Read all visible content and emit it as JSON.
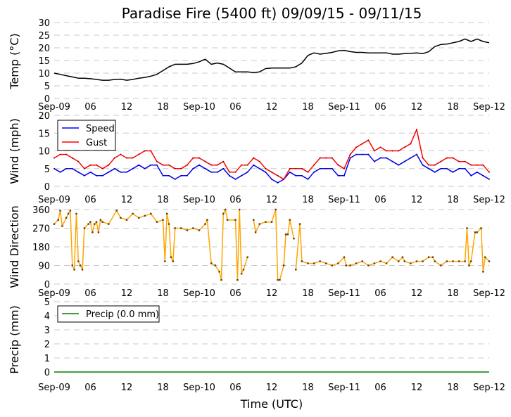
{
  "chart_data": [
    {
      "type": "line",
      "title": "Paradise Fire (5400 ft) 09/09/15 - 09/11/15",
      "ylabel": "Temp (°C)",
      "ylim": [
        0,
        30
      ],
      "yticks": [
        0,
        5,
        10,
        15,
        20,
        25,
        30
      ],
      "grid": true,
      "series": [
        {
          "color": "#000000",
          "values": [
            10,
            9.5,
            9,
            8.5,
            8,
            8,
            7.8,
            7.5,
            7.2,
            7.2,
            7.5,
            7.6,
            7.2,
            7.5,
            8,
            8.3,
            8.8,
            9.5,
            11,
            12.5,
            13.5,
            13.5,
            13.5,
            13.8,
            14.5,
            15.5,
            13.5,
            14,
            13.5,
            12,
            10.5,
            10.5,
            10.5,
            10.2,
            10.5,
            11.8,
            12,
            12,
            12,
            12,
            12.5,
            14,
            17,
            18,
            17.5,
            17.8,
            18.2,
            18.8,
            19,
            18.5,
            18.2,
            18.2,
            18,
            18,
            18,
            18,
            17.5,
            17.5,
            17.7,
            17.8,
            18,
            17.7,
            18.5,
            20.5,
            21.3,
            21.5,
            22,
            22.5,
            23.5,
            22.5,
            23.5,
            22.5,
            22
          ]
        }
      ]
    },
    {
      "type": "line",
      "ylabel": "Wind (mph)",
      "ylim": [
        0,
        20
      ],
      "yticks": [
        0,
        5,
        10,
        15,
        20
      ],
      "grid": true,
      "legend": "top-left",
      "series": [
        {
          "name": "Speed",
          "color": "#0000ff",
          "values": [
            5,
            4,
            5,
            5,
            4,
            3,
            4,
            3,
            3,
            4,
            5,
            4,
            4,
            5,
            6,
            5,
            6,
            6,
            3,
            3,
            2,
            3,
            3,
            5,
            6,
            5,
            4,
            4,
            5,
            3,
            2,
            3,
            4,
            6,
            5,
            4,
            2,
            1,
            2,
            4,
            3,
            3,
            2,
            4,
            5,
            5,
            5,
            3,
            3,
            8,
            9,
            9,
            9,
            7,
            8,
            8,
            7,
            6,
            7,
            8,
            9,
            6,
            5,
            4,
            5,
            5,
            4,
            5,
            5,
            3,
            4,
            3,
            2
          ]
        },
        {
          "name": "Gust",
          "color": "#ff0000",
          "values": [
            8,
            9,
            9,
            8,
            7,
            5,
            6,
            6,
            5,
            6,
            8,
            9,
            8,
            8,
            9,
            10,
            10,
            7,
            6,
            6,
            5,
            5,
            6,
            8,
            8,
            7,
            6,
            6,
            7,
            4,
            4,
            6,
            6,
            8,
            7,
            5,
            4,
            3,
            2,
            5,
            5,
            5,
            4,
            6,
            8,
            8,
            8,
            6,
            5,
            9,
            11,
            12,
            13,
            10,
            11,
            10,
            10,
            10,
            11,
            12,
            16,
            8,
            6,
            6,
            7,
            8,
            8,
            7,
            7,
            6,
            6,
            6,
            4
          ]
        }
      ]
    },
    {
      "type": "line",
      "ylabel": "Wind Direction",
      "ylim": [
        0,
        360
      ],
      "yticks": [
        0,
        90,
        180,
        270,
        360
      ],
      "grid": true,
      "series": [
        {
          "color": "#ffa500",
          "marker_color": "#5a3c0a",
          "points": [
            [
              "2015-09-09 00:00",
              290
            ],
            [
              "2015-09-09 00:40",
              310
            ],
            [
              "2015-09-09 01:00",
              355
            ],
            [
              "2015-09-09 01:20",
              280
            ],
            [
              "2015-09-09 02:00",
              320
            ],
            [
              "2015-09-09 02:20",
              340
            ],
            [
              "2015-09-09 02:40",
              355
            ],
            [
              "2015-09-09 03:00",
              90
            ],
            [
              "2015-09-09 03:20",
              70
            ],
            [
              "2015-09-09 03:40",
              340
            ],
            [
              "2015-09-09 04:00",
              110
            ],
            [
              "2015-09-09 04:20",
              90
            ],
            [
              "2015-09-09 04:40",
              70
            ],
            [
              "2015-09-09 05:00",
              270
            ],
            [
              "2015-09-09 05:40",
              290
            ],
            [
              "2015-09-09 06:00",
              300
            ],
            [
              "2015-09-09 06:20",
              250
            ],
            [
              "2015-09-09 06:40",
              290
            ],
            [
              "2015-09-09 07:00",
              300
            ],
            [
              "2015-09-09 07:20",
              250
            ],
            [
              "2015-09-09 07:40",
              310
            ],
            [
              "2015-09-09 08:00",
              300
            ],
            [
              "2015-09-09 09:00",
              290
            ],
            [
              "2015-09-09 10:20",
              355
            ],
            [
              "2015-09-09 11:00",
              320
            ],
            [
              "2015-09-09 12:00",
              310
            ],
            [
              "2015-09-09 13:00",
              340
            ],
            [
              "2015-09-09 14:00",
              320
            ],
            [
              "2015-09-09 15:00",
              330
            ],
            [
              "2015-09-09 16:00",
              340
            ],
            [
              "2015-09-09 17:00",
              300
            ],
            [
              "2015-09-09 18:00",
              310
            ],
            [
              "2015-09-09 18:20",
              110
            ],
            [
              "2015-09-09 18:40",
              340
            ],
            [
              "2015-09-09 19:00",
              290
            ],
            [
              "2015-09-09 19:20",
              130
            ],
            [
              "2015-09-09 19:40",
              110
            ],
            [
              "2015-09-09 20:00",
              270
            ],
            [
              "2015-09-09 21:00",
              270
            ],
            [
              "2015-09-09 22:00",
              260
            ],
            [
              "2015-09-09 23:00",
              270
            ],
            [
              "2015-09-10 00:00",
              260
            ],
            [
              "2015-09-10 01:00",
              290
            ],
            [
              "2015-09-10 01:20",
              310
            ],
            [
              "2015-09-10 02:00",
              100
            ],
            [
              "2015-09-10 02:40",
              90
            ],
            [
              "2015-09-10 03:20",
              60
            ],
            [
              "2015-09-10 03:40",
              20
            ],
            [
              "2015-09-10 04:00",
              340
            ],
            [
              "2015-09-10 04:20",
              360
            ],
            [
              "2015-09-10 04:40",
              310
            ],
            [
              "2015-09-10 06:00",
              310
            ],
            [
              "2015-09-10 06:20",
              20
            ],
            [
              "2015-09-10 06:40",
              360
            ],
            [
              "2015-09-10 07:00",
              50
            ],
            [
              "2015-09-10 07:20",
              70
            ],
            [
              "2015-09-10 08:00",
              130
            ],
            null,
            [
              "2015-09-10 09:00",
              310
            ],
            [
              "2015-09-10 09:20",
              250
            ],
            [
              "2015-09-10 10:00",
              290
            ],
            [
              "2015-09-10 11:00",
              300
            ],
            [
              "2015-09-10 12:00",
              300
            ],
            [
              "2015-09-10 12:40",
              360
            ],
            [
              "2015-09-10 13:00",
              20
            ],
            [
              "2015-09-10 13:20",
              20
            ],
            [
              "2015-09-10 14:00",
              90
            ],
            [
              "2015-09-10 14:20",
              240
            ],
            [
              "2015-09-10 14:40",
              240
            ],
            [
              "2015-09-10 15:00",
              310
            ],
            [
              "2015-09-10 15:40",
              220
            ],
            null,
            [
              "2015-09-10 16:00",
              70
            ],
            [
              "2015-09-10 16:40",
              290
            ],
            [
              "2015-09-10 17:00",
              110
            ],
            [
              "2015-09-10 18:00",
              100
            ],
            [
              "2015-09-10 19:00",
              100
            ],
            [
              "2015-09-10 20:00",
              110
            ],
            [
              "2015-09-10 21:00",
              100
            ],
            [
              "2015-09-10 22:00",
              90
            ],
            [
              "2015-09-10 23:00",
              100
            ],
            [
              "2015-09-11 00:00",
              130
            ],
            [
              "2015-09-11 00:20",
              90
            ],
            [
              "2015-09-11 01:00",
              90
            ],
            [
              "2015-09-11 02:00",
              100
            ],
            [
              "2015-09-11 03:00",
              110
            ],
            [
              "2015-09-11 04:00",
              90
            ],
            [
              "2015-09-11 05:00",
              100
            ],
            [
              "2015-09-11 06:00",
              110
            ],
            [
              "2015-09-11 07:00",
              100
            ],
            [
              "2015-09-11 08:00",
              130
            ],
            [
              "2015-09-11 09:00",
              110
            ],
            [
              "2015-09-11 09:40",
              130
            ],
            [
              "2015-09-11 10:00",
              110
            ],
            [
              "2015-09-11 11:00",
              100
            ],
            [
              "2015-09-11 12:00",
              110
            ],
            [
              "2015-09-11 13:00",
              110
            ],
            [
              "2015-09-11 14:00",
              130
            ],
            [
              "2015-09-11 14:40",
              130
            ],
            [
              "2015-09-11 15:00",
              110
            ],
            [
              "2015-09-11 16:00",
              90
            ],
            [
              "2015-09-11 17:00",
              110
            ],
            [
              "2015-09-11 18:00",
              110
            ],
            [
              "2015-09-11 19:00",
              110
            ],
            [
              "2015-09-11 20:00",
              110
            ],
            [
              "2015-09-11 20:20",
              270
            ],
            [
              "2015-09-11 20:40",
              90
            ],
            [
              "2015-09-11 21:00",
              110
            ],
            [
              "2015-09-11 21:40",
              250
            ],
            [
              "2015-09-11 22:00",
              250
            ],
            [
              "2015-09-11 22:40",
              270
            ],
            [
              "2015-09-11 23:00",
              60
            ],
            [
              "2015-09-11 23:20",
              130
            ],
            [
              "2015-09-12 00:00",
              110
            ]
          ]
        }
      ]
    },
    {
      "type": "line",
      "ylabel": "Precip (mm)",
      "xlabel": "Time (UTC)",
      "ylim": [
        0,
        5
      ],
      "yticks": [
        0,
        1,
        2,
        3,
        4,
        5
      ],
      "grid": true,
      "legend": "top-left",
      "series": [
        {
          "name": "Precip (0.0 mm)",
          "color": "#008000",
          "values": [
            0,
            0
          ]
        }
      ]
    }
  ],
  "x_axis": {
    "range": [
      "2015-09-09 00:00",
      "2015-09-12 00:00"
    ],
    "tick_labels": [
      "Sep-09",
      "06",
      "12",
      "18",
      "Sep-10",
      "06",
      "12",
      "18",
      "Sep-11",
      "06",
      "12",
      "18",
      "Sep-12"
    ]
  }
}
